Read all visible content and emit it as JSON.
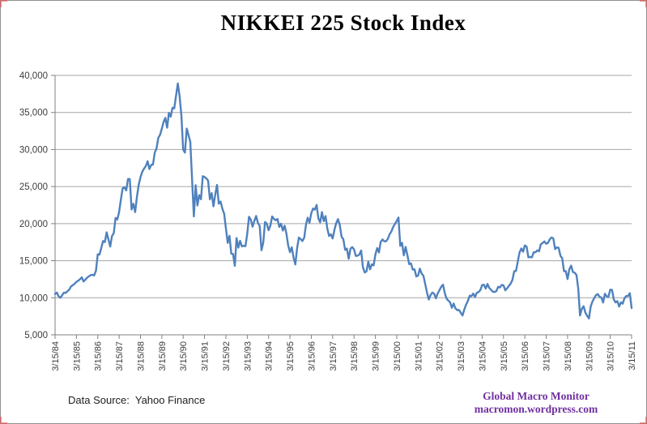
{
  "title": "NIKKEI 225 Stock Index",
  "footer": {
    "data_source": "Data Source:  Yahoo Finance",
    "brand_line1": "Global Macro Monitor",
    "brand_line2": "macromon.wordpress.com",
    "brand_color": "#7030A0"
  },
  "colors": {
    "line": "#4F81BD",
    "gridline": "#a6a6a6",
    "axis": "#808080",
    "tick_label": "#3d3d3d",
    "border": "#909090",
    "corner_mark": "#e05a5a"
  },
  "chart_data": {
    "type": "line",
    "title": "NIKKEI 225 Stock Index",
    "series_name": "NIKKEI 225",
    "xlabel": "",
    "ylabel": "",
    "legend": false,
    "grid": true,
    "ylim": [
      5000,
      40000
    ],
    "y_tick_step": 5000,
    "y_tick_labels": [
      "5,000",
      "10,000",
      "15,000",
      "20,000",
      "25,000",
      "30,000",
      "35,000",
      "40,000"
    ],
    "x_tick_labels": [
      "3/15/84",
      "3/15/85",
      "3/15/86",
      "3/15/87",
      "3/15/88",
      "3/15/89",
      "3/15/90",
      "3/15/91",
      "3/15/92",
      "3/15/93",
      "3/15/94",
      "3/15/95",
      "3/15/96",
      "3/15/97",
      "3/15/98",
      "3/15/99",
      "3/15/00",
      "3/15/01",
      "3/15/02",
      "3/15/03",
      "3/15/04",
      "3/15/05",
      "3/15/06",
      "3/15/07",
      "3/15/08",
      "3/15/09",
      "3/15/10",
      "3/15/11"
    ],
    "x_start": "1984-03",
    "x_end": "2011-03",
    "interval": "monthly",
    "values": [
      10500,
      10700,
      10200,
      10000,
      10350,
      10700,
      10650,
      10900,
      11100,
      11540,
      11700,
      11900,
      12150,
      12300,
      12500,
      12750,
      12200,
      12450,
      12700,
      12900,
      13050,
      13110,
      13020,
      13640,
      15860,
      15830,
      16740,
      17650,
      17510,
      18820,
      17850,
      16910,
      18330,
      18700,
      20770,
      20560,
      21570,
      23280,
      24770,
      24900,
      24490,
      26030,
      26000,
      21910,
      22690,
      21560,
      23620,
      25240,
      26260,
      27000,
      27420,
      27770,
      28420,
      27370,
      27920,
      27980,
      29580,
      30160,
      31580,
      31990,
      32840,
      33710,
      34270,
      32950,
      34950,
      34430,
      35640,
      35550,
      37270,
      38920,
      37190,
      34590,
      29980,
      29590,
      32820,
      31940,
      31040,
      25980,
      20980,
      25190,
      22460,
      23850,
      23290,
      26410,
      26290,
      26110,
      25790,
      23290,
      24120,
      22340,
      23920,
      25220,
      22690,
      22980,
      22020,
      21340,
      19350,
      17390,
      18350,
      15950,
      15910,
      14310,
      18060,
      16770,
      17680,
      16930,
      17020,
      16950,
      18590,
      20920,
      20550,
      19590,
      20380,
      21030,
      20110,
      19700,
      16410,
      17420,
      20230,
      20000,
      19110,
      19730,
      20970,
      20640,
      20450,
      20630,
      19560,
      19990,
      19070,
      19720,
      18650,
      17050,
      16140,
      16810,
      15440,
      14490,
      16680,
      18120,
      17910,
      17660,
      18110,
      19870,
      20810,
      20130,
      21410,
      22040,
      21890,
      22530,
      20690,
      20170,
      21560,
      20330,
      21020,
      19360,
      18330,
      18560,
      18000,
      19150,
      20070,
      20610,
      19830,
      18230,
      17890,
      16460,
      16640,
      15260,
      16630,
      16830,
      16530,
      15640,
      15670,
      15830,
      16380,
      14110,
      13410,
      13560,
      14880,
      13840,
      14500,
      14370,
      15840,
      16700,
      16110,
      17530,
      17860,
      17630,
      17610,
      17940,
      18560,
      18930,
      19540,
      19960,
      20340,
      20830,
      17000,
      17410,
      15730,
      16860,
      15750,
      14540,
      14650,
      13790,
      13840,
      12880,
      13000,
      13930,
      13260,
      12970,
      11860,
      10710,
      9770,
      10370,
      10700,
      10540,
      9920,
      10590,
      11030,
      11490,
      11760,
      10620,
      9880,
      9620,
      9380,
      8640,
      9220,
      8580,
      8340,
      8360,
      7970,
      7610,
      8420,
      9080,
      9560,
      10280,
      10220,
      10560,
      10100,
      10680,
      10780,
      11040,
      11720,
      11760,
      11240,
      11860,
      11330,
      11080,
      10820,
      10770,
      10900,
      11490,
      11390,
      11740,
      11670,
      11010,
      11280,
      11580,
      11900,
      12410,
      13570,
      13610,
      14870,
      16110,
      16650,
      16210,
      17060,
      16910,
      15470,
      15510,
      15460,
      16140,
      16130,
      16400,
      16270,
      17230,
      17380,
      17600,
      17290,
      17400,
      17880,
      18140,
      18000,
      16570,
      16790,
      16740,
      15680,
      15310,
      13590,
      13600,
      12530,
      13850,
      14340,
      13480,
      13380,
      13070,
      11260,
      7600,
      8510,
      8860,
      7990,
      7570,
      7200,
      8830,
      9520,
      9960,
      10360,
      10490,
      10130,
      10040,
      9350,
      10550,
      10200,
      10130,
      11090,
      11060,
      9770,
      9380,
      9540,
      8820,
      9370,
      9200,
      9940,
      10230,
      10240,
      10620,
      8610
    ]
  }
}
